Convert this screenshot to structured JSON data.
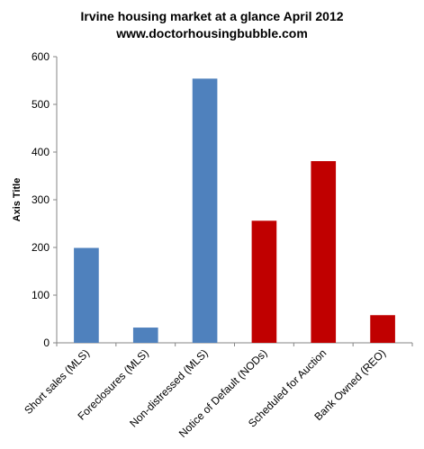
{
  "chart_data": {
    "type": "bar",
    "title": "Irvine housing market at a glance April 2012",
    "subtitle": "www.doctorhousingbubble.com",
    "ylabel": "Axis Title",
    "xlabel": "",
    "ylim": [
      0,
      600
    ],
    "yticks": [
      0,
      100,
      200,
      300,
      400,
      500,
      600
    ],
    "grid": false,
    "categories": [
      "Short sales (MLS)",
      "Foreclosures (MLS)",
      "Non-distressed (MLS)",
      "Notice of Default (NODs)",
      "Scheduled for Auction",
      "Bank Owned (REO)"
    ],
    "values": [
      199,
      32,
      554,
      256,
      381,
      58
    ],
    "colors": [
      "#4f81bd",
      "#4f81bd",
      "#4f81bd",
      "#c00000",
      "#c00000",
      "#c00000"
    ]
  }
}
